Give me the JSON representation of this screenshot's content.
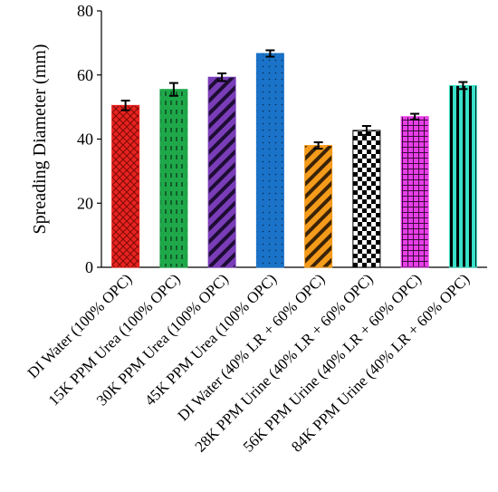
{
  "chart_data": {
    "type": "bar",
    "title": "",
    "xlabel": "",
    "ylabel": "Spreading Diameter (mm)",
    "ylim": [
      0,
      80
    ],
    "yticks": [
      0,
      20,
      40,
      60,
      80
    ],
    "grid": false,
    "categories": [
      "DI Water (100% OPC)",
      "15K PPM Urea (100% OPC)",
      "30K PPM Urea (100% OPC)",
      "45K PPM Urea (100% OPC)",
      "DI Water (40% LR + 60% OPC)",
      "28K PPM Urine (40% LR + 60% OPC)",
      "56K PPM Urine (40% LR + 60% OPC)",
      "84K PPM Urine (40% LR + 60% OPC)"
    ],
    "values": [
      50.5,
      55.5,
      59.3,
      66.7,
      38.0,
      42.7,
      47.0,
      56.7
    ],
    "errors": [
      1.5,
      2.0,
      1.2,
      1.0,
      1.0,
      1.4,
      0.9,
      1.1
    ],
    "colors": [
      "#e8231f",
      "#1fa84a",
      "#7a3db8",
      "#1a73c8",
      "#f59b1b",
      "#ffffff",
      "#e83ee8",
      "#38e0c8"
    ],
    "patterns": [
      "crosshatch-diagonal",
      "dashed-vertical",
      "wide-diagonal",
      "dotted-grid",
      "wide-diagonal",
      "checkerboard",
      "grid",
      "vertical-stripes"
    ]
  }
}
